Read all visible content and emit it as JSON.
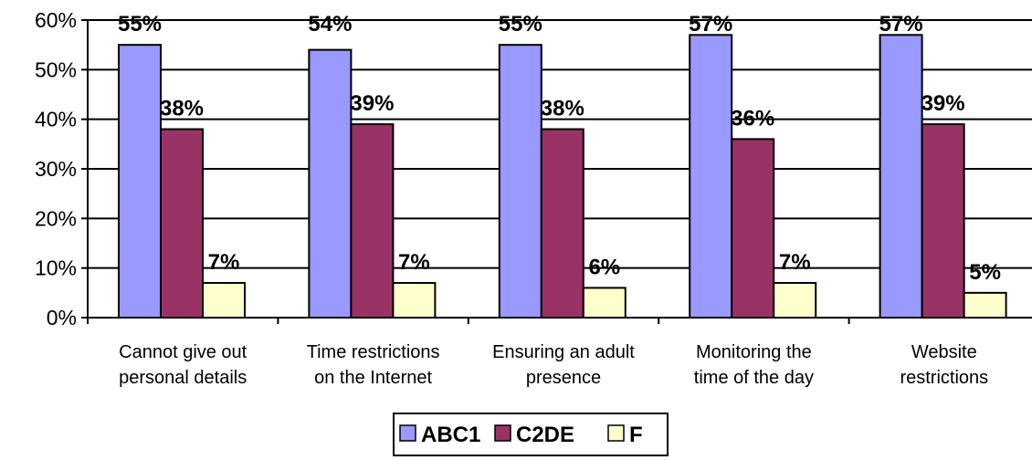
{
  "chart_data": {
    "type": "bar",
    "categories": [
      [
        "Cannot give out",
        "personal details"
      ],
      [
        "Time restrictions",
        "on the Internet"
      ],
      [
        "Ensuring an adult",
        "presence"
      ],
      [
        "Monitoring the",
        "time of the day"
      ],
      [
        "Website",
        "restrictions"
      ]
    ],
    "series": [
      {
        "name": "ABC1",
        "color": "#9999ff",
        "values": [
          55,
          54,
          55,
          57,
          57
        ],
        "labels": [
          "55%",
          "54%",
          "55%",
          "57%",
          "57%"
        ]
      },
      {
        "name": "C2DE",
        "color": "#993366",
        "values": [
          38,
          39,
          38,
          36,
          39
        ],
        "labels": [
          "38%",
          "39%",
          "38%",
          "36%",
          "39%"
        ]
      },
      {
        "name": "F",
        "color": "#ffffcc",
        "values": [
          7,
          7,
          6,
          7,
          5
        ],
        "labels": [
          "7%",
          "7%",
          "6%",
          "7%",
          "5%"
        ]
      }
    ],
    "yticks": [
      "0%",
      "10%",
      "20%",
      "30%",
      "40%",
      "50%",
      "60%"
    ],
    "ylim": [
      0,
      60
    ],
    "grid": true,
    "legend": "bottom"
  }
}
